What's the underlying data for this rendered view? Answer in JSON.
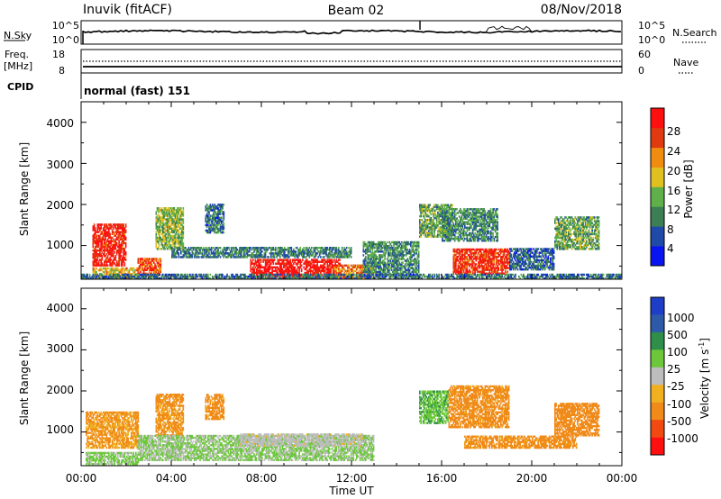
{
  "header": {
    "station": "Inuvik (fitACF)",
    "beam": "Beam 02",
    "date": "08/Nov/2018"
  },
  "noise_panel": {
    "left_label": "N.Sky",
    "left_ticks": [
      "10^5",
      "10^0"
    ],
    "right_label": "N.Search",
    "right_ticks": [
      "10^5",
      "10^0"
    ]
  },
  "freq_panel": {
    "left_label_1": "Freq.",
    "left_label_2": "[MHz]",
    "left_ticks": [
      "18",
      "8"
    ],
    "right_label": "Nave",
    "right_ticks": [
      "60",
      "0"
    ]
  },
  "cpid_panel": {
    "label": "CPID",
    "value": "normal (fast) 151"
  },
  "xaxis": {
    "label": "Time UT",
    "ticks": [
      "00:00",
      "04:00",
      "08:00",
      "12:00",
      "16:00",
      "20:00",
      "00:00"
    ]
  },
  "power_panel": {
    "ylabel": "Slant Range [km]",
    "yticks": [
      "4000",
      "3000",
      "2000",
      "1000"
    ],
    "colorbar_label": "Power [dB]",
    "colorbar_ticks": [
      "28",
      "24",
      "20",
      "16",
      "12",
      "8",
      "4"
    ]
  },
  "velocity_panel": {
    "ylabel": "Slant Range [km]",
    "yticks": [
      "4000",
      "3000",
      "2000",
      "1000"
    ],
    "colorbar_label": "Velocity  [m s",
    "colorbar_unit_exp": "-1",
    "colorbar_label_end": "]",
    "colorbar_ticks": [
      "1000",
      "500",
      "100",
      "25",
      "-25",
      "-100",
      "-500",
      "-1000"
    ]
  },
  "colors": {
    "power_scale": [
      "#0a14f0",
      "#1f4aa8",
      "#3c7f55",
      "#5fb04b",
      "#e0c020",
      "#f08c10",
      "#e03a10",
      "#ff1010"
    ],
    "velocity_scale": [
      "#1e3ec8",
      "#2d5aa8",
      "#2e8e4a",
      "#6cc83a",
      "#bdbdbd",
      "#f0b020",
      "#f08a18",
      "#f04a10",
      "#ff1010"
    ],
    "trace": "#000000",
    "ground_scatter": "#a9a9a9"
  },
  "chart_data": [
    {
      "type": "heatmap",
      "title": "Power [dB]",
      "xlabel": "Time UT",
      "ylabel": "Slant Range [km]",
      "xlim": [
        0,
        24
      ],
      "ylim": [
        180,
        4500
      ],
      "clim": [
        0,
        30
      ],
      "regions": [
        {
          "t0": 0.5,
          "t1": 2.0,
          "r0": 500,
          "r1": 1500,
          "value": 27
        },
        {
          "t0": 0.5,
          "t1": 2.5,
          "r0": 200,
          "r1": 450,
          "value": 18
        },
        {
          "t0": 2.5,
          "t1": 3.5,
          "r0": 250,
          "r1": 700,
          "value": 24
        },
        {
          "t0": 3.3,
          "t1": 4.5,
          "r0": 900,
          "r1": 1900,
          "value": 14
        },
        {
          "t0": 4.0,
          "t1": 12.0,
          "r0": 700,
          "r1": 950,
          "value": 9
        },
        {
          "t0": 5.5,
          "t1": 6.3,
          "r0": 1300,
          "r1": 2000,
          "value": 8
        },
        {
          "t0": 7.5,
          "t1": 11.5,
          "r0": 180,
          "r1": 650,
          "value": 29
        },
        {
          "t0": 11.2,
          "t1": 13.0,
          "r0": 180,
          "r1": 500,
          "value": 22
        },
        {
          "t0": 12.5,
          "t1": 15.0,
          "r0": 250,
          "r1": 1100,
          "value": 10
        },
        {
          "t0": 15.0,
          "t1": 16.5,
          "r0": 1200,
          "r1": 2000,
          "value": 12
        },
        {
          "t0": 16.5,
          "t1": 19.0,
          "r0": 300,
          "r1": 900,
          "value": 26
        },
        {
          "t0": 16.0,
          "t1": 18.5,
          "r0": 1100,
          "r1": 1900,
          "value": 10
        },
        {
          "t0": 19.0,
          "t1": 21.0,
          "r0": 400,
          "r1": 900,
          "value": 7
        },
        {
          "t0": 21.0,
          "t1": 23.0,
          "r0": 900,
          "r1": 1700,
          "value": 12
        },
        {
          "t0": 0.0,
          "t1": 24.0,
          "r0": 180,
          "r1": 300,
          "value": 8
        }
      ]
    },
    {
      "type": "heatmap",
      "title": "Velocity [m s-1]",
      "xlabel": "Time UT",
      "ylabel": "Slant Range [km]",
      "xlim": [
        0,
        24
      ],
      "ylim": [
        180,
        4500
      ],
      "clim": [
        -1000,
        1000
      ],
      "regions": [
        {
          "t0": 0.2,
          "t1": 2.5,
          "r0": 600,
          "r1": 1500,
          "value": -120
        },
        {
          "t0": 0.2,
          "t1": 2.5,
          "r0": 200,
          "r1": 500,
          "value": 40
        },
        {
          "t0": 3.3,
          "t1": 4.5,
          "r0": 900,
          "r1": 1900,
          "value": -150
        },
        {
          "t0": 2.5,
          "t1": 13.0,
          "r0": 300,
          "r1": 900,
          "value": 30
        },
        {
          "t0": 7.0,
          "t1": 12.5,
          "r0": 650,
          "r1": 950,
          "value": 0
        },
        {
          "t0": 5.5,
          "t1": 6.3,
          "r0": 1300,
          "r1": 1900,
          "value": -200
        },
        {
          "t0": 15.0,
          "t1": 16.3,
          "r0": 1200,
          "r1": 2000,
          "value": 80
        },
        {
          "t0": 16.3,
          "t1": 19.0,
          "r0": 1100,
          "r1": 2100,
          "value": -200
        },
        {
          "t0": 17.0,
          "t1": 22.0,
          "r0": 600,
          "r1": 900,
          "value": -180
        },
        {
          "t0": 21.0,
          "t1": 23.0,
          "r0": 900,
          "r1": 1700,
          "value": -250
        }
      ]
    }
  ]
}
